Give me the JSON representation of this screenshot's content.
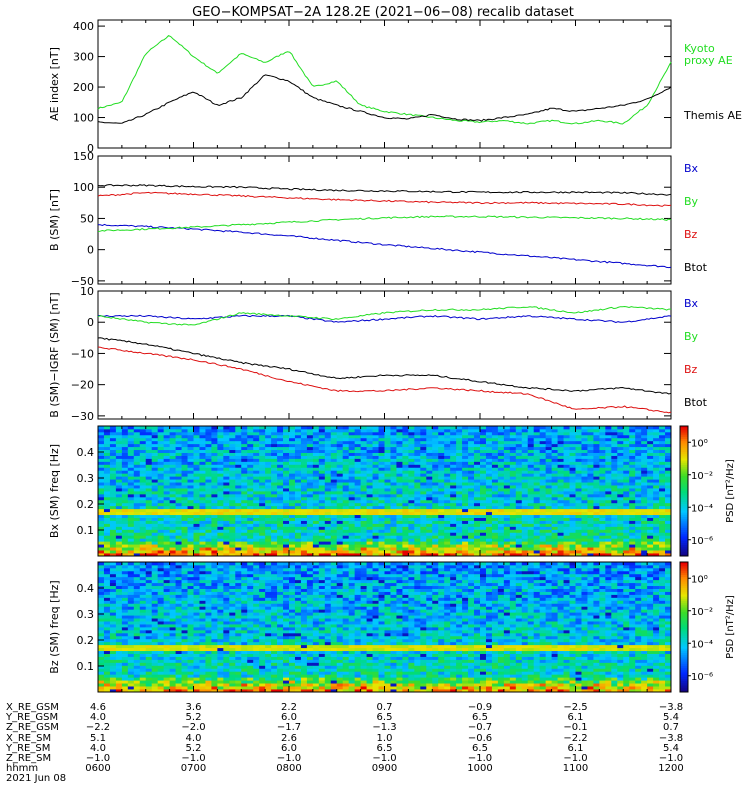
{
  "title": "GEO−KOMPSAT−2A 128.2E (2021−06−08) recalib dataset",
  "colors": {
    "black": "#000000",
    "green": "#22dd22",
    "red": "#dd1111",
    "blue": "#0000cc"
  },
  "chart_data": [
    {
      "type": "line",
      "ylabel": "AE index [nT]",
      "ylim": [
        0,
        420
      ],
      "yticks": [
        "0",
        "100",
        "200",
        "300",
        "400"
      ],
      "ytick_values": [
        0,
        100,
        200,
        300,
        400
      ],
      "x": [
        "0600",
        "0615",
        "0630",
        "0645",
        "0700",
        "0715",
        "0730",
        "0745",
        "0800",
        "0815",
        "0830",
        "0845",
        "0900",
        "0915",
        "0930",
        "0945",
        "1000",
        "1015",
        "1030",
        "1045",
        "1100",
        "1115",
        "1130",
        "1145",
        "1200"
      ],
      "series": [
        {
          "name": "Kyoto proxy AE",
          "color": "green",
          "values": [
            130,
            150,
            310,
            370,
            300,
            245,
            310,
            280,
            320,
            200,
            220,
            140,
            120,
            110,
            100,
            90,
            85,
            90,
            80,
            90,
            80,
            90,
            80,
            140,
            280
          ]
        },
        {
          "name": "Themis AE",
          "color": "black",
          "values": [
            85,
            80,
            110,
            150,
            185,
            140,
            165,
            240,
            220,
            165,
            140,
            120,
            100,
            95,
            110,
            95,
            90,
            100,
            110,
            130,
            120,
            130,
            140,
            160,
            200
          ]
        }
      ]
    },
    {
      "type": "line",
      "ylabel": "B (SM) [nT]",
      "ylim": [
        -55,
        150
      ],
      "yticks": [
        "−50",
        "0",
        "50",
        "100",
        "150"
      ],
      "ytick_values": [
        -50,
        0,
        50,
        100,
        150
      ],
      "x": [
        "0600",
        "0630",
        "0700",
        "0730",
        "0800",
        "0830",
        "0900",
        "0930",
        "1000",
        "1030",
        "1100",
        "1130",
        "1200"
      ],
      "series": [
        {
          "name": "Bx",
          "color": "blue",
          "values": [
            40,
            37,
            33,
            28,
            22,
            15,
            8,
            2,
            -4,
            -10,
            -16,
            -22,
            -28
          ]
        },
        {
          "name": "By",
          "color": "green",
          "values": [
            30,
            33,
            36,
            40,
            44,
            48,
            51,
            53,
            53,
            52,
            51,
            50,
            48
          ]
        },
        {
          "name": "Bz",
          "color": "red",
          "values": [
            86,
            91,
            89,
            86,
            83,
            80,
            78,
            76,
            75,
            75,
            74,
            73,
            70
          ]
        },
        {
          "name": "Btot",
          "color": "black",
          "values": [
            103,
            103,
            101,
            100,
            97,
            95,
            94,
            93,
            92,
            92,
            92,
            91,
            88
          ]
        }
      ]
    },
    {
      "type": "line",
      "ylabel": "B (SM)−IGRF (SM) [nT]",
      "ylim": [
        -31,
        10
      ],
      "yticks": [
        "−30",
        "−20",
        "−10",
        "0",
        "10"
      ],
      "ytick_values": [
        -30,
        -20,
        -10,
        0,
        10
      ],
      "x": [
        "0600",
        "0630",
        "0700",
        "0730",
        "0800",
        "0830",
        "0900",
        "0930",
        "1000",
        "1030",
        "1100",
        "1130",
        "1200"
      ],
      "series": [
        {
          "name": "Bx",
          "color": "blue",
          "values": [
            2,
            2,
            1,
            2,
            2,
            0,
            1,
            2,
            1,
            2,
            1,
            0,
            2
          ]
        },
        {
          "name": "By",
          "color": "green",
          "values": [
            2,
            0,
            -1,
            3,
            2,
            1,
            3,
            4,
            4,
            5,
            3,
            5,
            4
          ]
        },
        {
          "name": "Bz",
          "color": "red",
          "values": [
            -8,
            -10,
            -12,
            -15,
            -19,
            -22,
            -22,
            -21,
            -22,
            -23,
            -28,
            -27,
            -29
          ]
        },
        {
          "name": "Btot",
          "color": "black",
          "values": [
            -5,
            -7,
            -10,
            -13,
            -15,
            -18,
            -17,
            -17,
            -19,
            -21,
            -22,
            -21,
            -23
          ]
        }
      ]
    },
    {
      "type": "heatmap",
      "ylabel": "Bx (SM) freq [Hz]",
      "yticks": [
        "0.1",
        "0.2",
        "0.3",
        "0.4"
      ],
      "ytick_values": [
        0.1,
        0.2,
        0.3,
        0.4
      ],
      "ylim": [
        0,
        0.5
      ],
      "colorbar_label": "PSD [nT²/Hz]",
      "colorbar_ticks": [
        "10⁰",
        "10⁻²",
        "10⁻⁴",
        "10⁻⁶"
      ],
      "colorbar_tick_exponents": [
        0,
        -2,
        -4,
        -6
      ],
      "colorbar_range_exponents": [
        -7,
        1
      ],
      "band_hz": 0.17
    },
    {
      "type": "heatmap",
      "ylabel": "Bz (SM) freq [Hz]",
      "yticks": [
        "0.1",
        "0.2",
        "0.3",
        "0.4"
      ],
      "ytick_values": [
        0.1,
        0.2,
        0.3,
        0.4
      ],
      "ylim": [
        0,
        0.5
      ],
      "colorbar_label": "PSD [nT²/Hz]",
      "colorbar_ticks": [
        "10⁰",
        "10⁻²",
        "10⁻⁴",
        "10⁻⁶"
      ],
      "colorbar_tick_exponents": [
        0,
        -2,
        -4,
        -6
      ],
      "colorbar_range_exponents": [
        -7,
        1
      ],
      "band_hz": 0.17
    }
  ],
  "right_labels": {
    "ae": [
      "Kyoto",
      "proxy AE",
      "Themis AE"
    ],
    "b": [
      "Bx",
      "By",
      "Bz",
      "Btot"
    ],
    "db": [
      "Bx",
      "By",
      "Bz",
      "Btot"
    ]
  },
  "ephemeris": {
    "row_labels": [
      "X_RE_GSM",
      "Y_RE_GSM",
      "Z_RE_GSM",
      "X_RE_SM",
      "Y_RE_SM",
      "Z_RE_SM",
      "hhmm",
      "2021 Jun 08"
    ],
    "columns": [
      [
        "4.6",
        "4.0",
        "−2.2",
        "5.1",
        "4.0",
        "−1.0",
        "0600"
      ],
      [
        "3.6",
        "5.2",
        "−2.0",
        "4.0",
        "5.2",
        "−1.0",
        "0700"
      ],
      [
        "2.2",
        "6.0",
        "−1.7",
        "2.6",
        "6.0",
        "−1.0",
        "0800"
      ],
      [
        "0.7",
        "6.5",
        "−1.3",
        "1.0",
        "6.5",
        "−1.0",
        "0900"
      ],
      [
        "−0.9",
        "6.5",
        "−0.7",
        "−0.6",
        "6.5",
        "−1.0",
        "1000"
      ],
      [
        "−2.5",
        "6.1",
        "−0.1",
        "−2.2",
        "6.1",
        "−1.0",
        "1100"
      ],
      [
        "−3.8",
        "5.4",
        "0.7",
        "−3.8",
        "5.4",
        "−1.0",
        "1200"
      ]
    ]
  }
}
